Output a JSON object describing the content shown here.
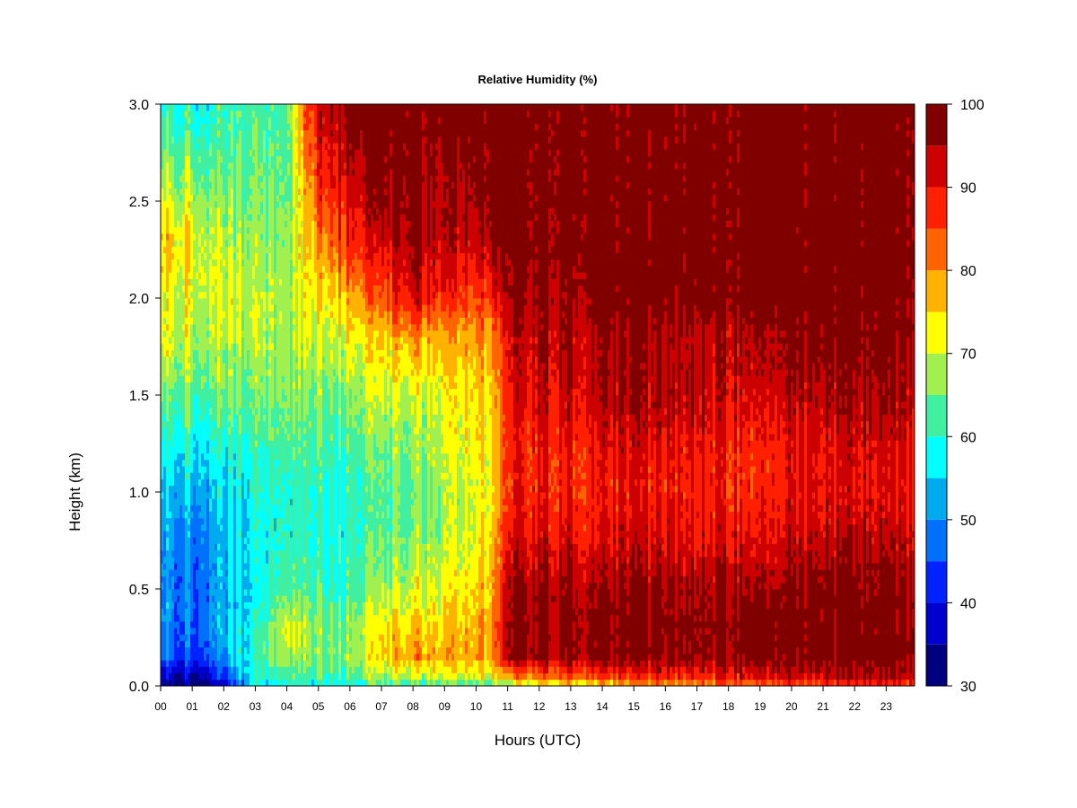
{
  "chart_data": {
    "type": "heatmap",
    "title": "Relative Humidity (%)",
    "xlabel": "Hours (UTC)",
    "ylabel": "Height (km)",
    "xlim": [
      0,
      23.9
    ],
    "ylim": [
      0,
      3.0
    ],
    "x_ticks": [
      "00",
      "01",
      "02",
      "03",
      "04",
      "05",
      "06",
      "07",
      "08",
      "09",
      "10",
      "11",
      "12",
      "13",
      "14",
      "15",
      "16",
      "17",
      "18",
      "19",
      "20",
      "21",
      "22",
      "23"
    ],
    "y_ticks": [
      "0.0",
      "0.5",
      "1.0",
      "1.5",
      "2.0",
      "2.5",
      "3.0"
    ],
    "colorbar": {
      "levels": [
        30,
        35,
        40,
        45,
        50,
        55,
        60,
        65,
        70,
        75,
        80,
        85,
        90,
        95,
        100
      ],
      "tick_labels": [
        "30",
        "40",
        "50",
        "60",
        "70",
        "80",
        "90",
        "100"
      ],
      "tick_values": [
        30,
        40,
        50,
        60,
        70,
        80,
        90,
        100
      ],
      "colors": [
        "#00007f",
        "#0000cc",
        "#0022ff",
        "#0070ff",
        "#00aaee",
        "#00ffff",
        "#40f0a0",
        "#a0f050",
        "#ffff00",
        "#ffb200",
        "#ff6400",
        "#ff2000",
        "#cc0000",
        "#800000"
      ]
    },
    "profile_heights_km": [
      0.0,
      0.05,
      0.15,
      0.3,
      0.5,
      0.8,
      1.0,
      1.2,
      1.5,
      1.8,
      2.0,
      2.3,
      2.6,
      3.0
    ],
    "profiles": [
      {
        "hour": 0.0,
        "rh": [
          34,
          38,
          47,
          50,
          50,
          52,
          55,
          58,
          65,
          72,
          72,
          76,
          68,
          60
        ]
      },
      {
        "hour": 1.0,
        "rh": [
          32,
          36,
          45,
          48,
          48,
          50,
          54,
          58,
          65,
          70,
          72,
          74,
          68,
          60
        ]
      },
      {
        "hour": 2.0,
        "rh": [
          36,
          42,
          50,
          52,
          52,
          53,
          55,
          58,
          64,
          68,
          70,
          68,
          64,
          60
        ]
      },
      {
        "hour": 3.0,
        "rh": [
          55,
          58,
          60,
          58,
          56,
          57,
          58,
          60,
          64,
          68,
          68,
          66,
          64,
          62
        ]
      },
      {
        "hour": 4.0,
        "rh": [
          58,
          62,
          68,
          72,
          64,
          60,
          60,
          62,
          66,
          68,
          68,
          66,
          64,
          62
        ]
      },
      {
        "hour": 4.6,
        "rh": [
          58,
          62,
          66,
          68,
          62,
          60,
          60,
          62,
          66,
          70,
          72,
          74,
          78,
          85
        ]
      },
      {
        "hour": 5.2,
        "rh": [
          58,
          62,
          66,
          66,
          62,
          60,
          60,
          62,
          66,
          70,
          75,
          82,
          90,
          95
        ]
      },
      {
        "hour": 6.0,
        "rh": [
          58,
          62,
          66,
          66,
          62,
          60,
          60,
          62,
          66,
          72,
          78,
          88,
          92,
          99
        ]
      },
      {
        "hour": 7.0,
        "rh": [
          60,
          66,
          74,
          72,
          66,
          62,
          62,
          64,
          68,
          74,
          82,
          90,
          96,
          99
        ]
      },
      {
        "hour": 8.0,
        "rh": [
          60,
          70,
          80,
          76,
          70,
          66,
          64,
          66,
          70,
          80,
          92,
          97,
          99,
          99
        ]
      },
      {
        "hour": 9.0,
        "rh": [
          60,
          68,
          76,
          74,
          70,
          66,
          66,
          68,
          70,
          76,
          86,
          92,
          92,
          99
        ]
      },
      {
        "hour": 10.0,
        "rh": [
          62,
          70,
          78,
          76,
          74,
          70,
          70,
          72,
          74,
          78,
          84,
          92,
          96,
          99
        ]
      },
      {
        "hour": 10.6,
        "rh": [
          62,
          72,
          80,
          80,
          78,
          76,
          74,
          74,
          76,
          80,
          88,
          96,
          99,
          99
        ]
      },
      {
        "hour": 11.0,
        "rh": [
          66,
          80,
          96,
          97,
          96,
          90,
          88,
          88,
          90,
          92,
          96,
          99,
          99,
          99
        ]
      },
      {
        "hour": 12.0,
        "rh": [
          70,
          82,
          96,
          97,
          96,
          90,
          88,
          88,
          92,
          94,
          96,
          99,
          99,
          99
        ]
      },
      {
        "hour": 13.0,
        "rh": [
          72,
          84,
          96,
          97,
          96,
          90,
          88,
          88,
          92,
          94,
          96,
          99,
          99,
          99
        ]
      },
      {
        "hour": 14.0,
        "rh": [
          74,
          86,
          97,
          98,
          96,
          90,
          88,
          90,
          94,
          95,
          99,
          99,
          99,
          99
        ]
      },
      {
        "hour": 15.0,
        "rh": [
          76,
          86,
          97,
          98,
          96,
          91,
          89,
          90,
          95,
          95,
          99,
          99,
          99,
          99
        ]
      },
      {
        "hour": 16.0,
        "rh": [
          78,
          88,
          97,
          98,
          96,
          91,
          89,
          90,
          95,
          95,
          99,
          99,
          99,
          99
        ]
      },
      {
        "hour": 17.0,
        "rh": [
          78,
          88,
          97,
          98,
          96,
          90,
          89,
          90,
          94,
          94,
          99,
          99,
          99,
          99
        ]
      },
      {
        "hour": 18.0,
        "rh": [
          80,
          90,
          97,
          98,
          96,
          90,
          88,
          88,
          92,
          94,
          99,
          99,
          99,
          99
        ]
      },
      {
        "hour": 19.0,
        "rh": [
          80,
          90,
          97,
          98,
          95,
          88,
          86,
          86,
          90,
          94,
          99,
          99,
          99,
          99
        ]
      },
      {
        "hour": 20.0,
        "rh": [
          82,
          92,
          98,
          98,
          97,
          92,
          90,
          90,
          94,
          97,
          99,
          99,
          99,
          99
        ]
      },
      {
        "hour": 21.0,
        "rh": [
          84,
          92,
          98,
          98,
          97,
          92,
          90,
          90,
          94,
          97,
          99,
          99,
          99,
          99
        ]
      },
      {
        "hour": 22.0,
        "rh": [
          86,
          94,
          98,
          98,
          97,
          93,
          90,
          91,
          95,
          97,
          99,
          99,
          99,
          99
        ]
      },
      {
        "hour": 23.0,
        "rh": [
          86,
          94,
          98,
          98,
          97,
          92,
          90,
          91,
          95,
          97,
          99,
          99,
          99,
          99
        ]
      },
      {
        "hour": 23.9,
        "rh": [
          86,
          94,
          98,
          98,
          97,
          92,
          90,
          91,
          95,
          97,
          99,
          99,
          99,
          99
        ]
      }
    ]
  }
}
